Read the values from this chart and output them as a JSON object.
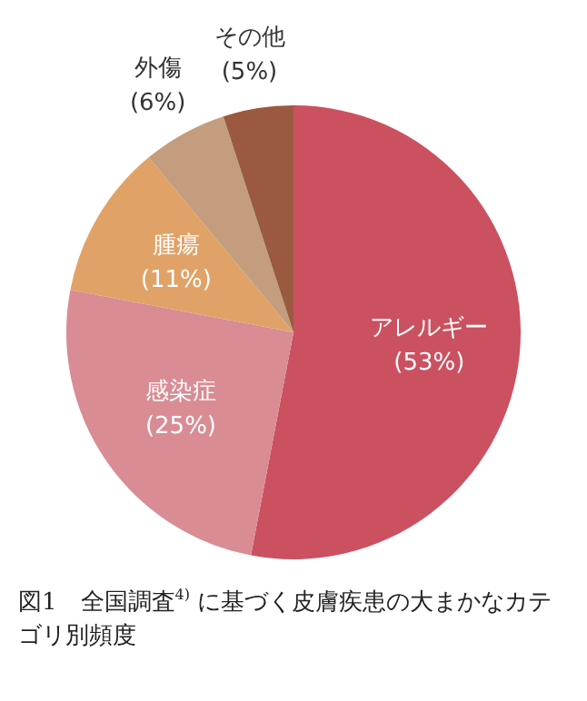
{
  "chart_data": {
    "type": "pie",
    "title": "図1　全国調査$^{4)}$ に基づく皮膚疾患の大まかなカテゴリ別頻度",
    "categories": [
      "アレルギー",
      "感染症",
      "腫瘍",
      "外傷",
      "その他"
    ],
    "values": [
      53,
      25,
      11,
      6,
      5
    ],
    "value_labels": [
      "(53%)",
      "(25%)",
      "(11%)",
      "(6%)",
      "(5%)"
    ],
    "colors": [
      "#cb5160",
      "#d98c94",
      "#e0a267",
      "#c39d7d",
      "#9b5a40"
    ],
    "legend": false
  }
}
